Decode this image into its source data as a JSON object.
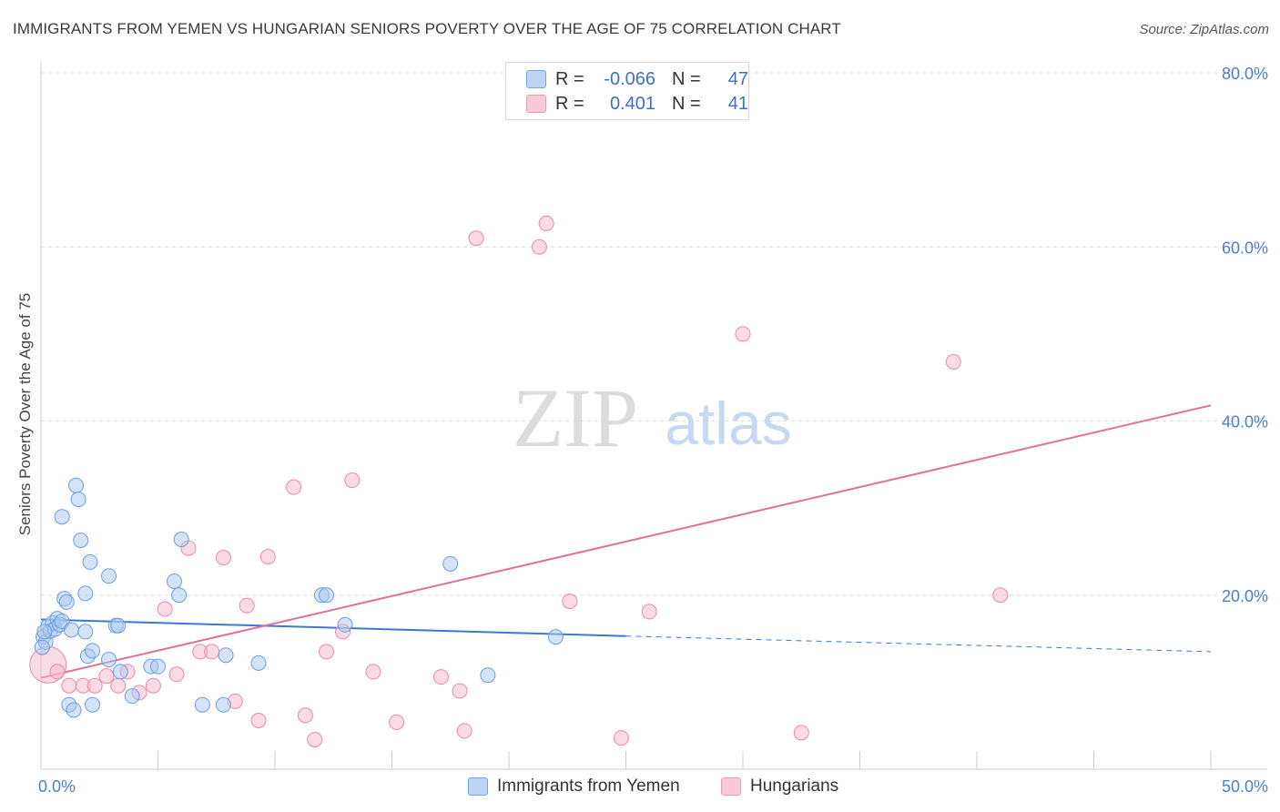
{
  "title": "IMMIGRANTS FROM YEMEN VS HUNGARIAN SENIORS POVERTY OVER THE AGE OF 75 CORRELATION CHART",
  "source": "Source: ZipAtlas.com",
  "watermark": {
    "zip": "ZIP",
    "atlas": "atlas"
  },
  "legend": {
    "r_label": "R =",
    "n_label": "N =",
    "rows": [
      {
        "r": "-0.066",
        "n": "47"
      },
      {
        "r": "0.401",
        "n": "41"
      }
    ]
  },
  "colors": {
    "blue_fill": "#a9c8f0",
    "blue_stroke": "#6a9fe0",
    "blue_line": "#3a78d4",
    "pink_fill": "#f5b8cb",
    "pink_stroke": "#e88aa8",
    "pink_line": "#e0709a",
    "tick_text": "#4a7fd0",
    "grid": "#dddddd"
  },
  "chart_data": {
    "type": "scatter",
    "title": "IMMIGRANTS FROM YEMEN VS HUNGARIAN SENIORS POVERTY OVER THE AGE OF 75 CORRELATION CHART",
    "xlabel": "",
    "ylabel": "Seniors Poverty Over the Age of 75",
    "xlim": [
      0,
      50
    ],
    "ylim": [
      0,
      80
    ],
    "x_tick_labels": [
      "0.0%",
      "50.0%"
    ],
    "y_tick_labels": [
      "20.0%",
      "40.0%",
      "60.0%",
      "80.0%"
    ],
    "y_ticks": [
      20,
      40,
      60,
      80
    ],
    "grid": true,
    "legend_position": "top-center",
    "series": [
      {
        "name": "Immigrants from Yemen",
        "r": -0.066,
        "n": 47,
        "points": [
          [
            0.1,
            15.2
          ],
          [
            0.2,
            14.6
          ],
          [
            0.3,
            16.4
          ],
          [
            0.4,
            15.9
          ],
          [
            0.5,
            16.8
          ],
          [
            0.6,
            16.1
          ],
          [
            0.7,
            17.3
          ],
          [
            0.8,
            16.6
          ],
          [
            0.9,
            17.0
          ],
          [
            1.0,
            19.6
          ],
          [
            1.1,
            19.2
          ],
          [
            1.2,
            7.4
          ],
          [
            1.3,
            16.0
          ],
          [
            1.4,
            6.8
          ],
          [
            1.5,
            32.6
          ],
          [
            1.6,
            31.0
          ],
          [
            1.7,
            26.3
          ],
          [
            1.9,
            15.8
          ],
          [
            1.9,
            20.2
          ],
          [
            0.9,
            29.0
          ],
          [
            2.0,
            13.0
          ],
          [
            2.1,
            23.8
          ],
          [
            2.2,
            13.6
          ],
          [
            2.2,
            7.4
          ],
          [
            2.9,
            22.2
          ],
          [
            2.9,
            12.6
          ],
          [
            3.2,
            16.5
          ],
          [
            3.3,
            16.5
          ],
          [
            3.4,
            11.2
          ],
          [
            3.9,
            8.4
          ],
          [
            4.7,
            11.8
          ],
          [
            5.0,
            11.8
          ],
          [
            5.7,
            21.6
          ],
          [
            5.9,
            20.0
          ],
          [
            6.0,
            26.4
          ],
          [
            6.9,
            7.4
          ],
          [
            7.8,
            7.4
          ],
          [
            7.9,
            13.1
          ],
          [
            9.3,
            12.2
          ],
          [
            12.0,
            20.0
          ],
          [
            12.2,
            20.0
          ],
          [
            13.0,
            16.6
          ],
          [
            17.5,
            23.6
          ],
          [
            19.1,
            10.8
          ],
          [
            22.0,
            15.2
          ],
          [
            0.05,
            14.0
          ],
          [
            0.15,
            15.8
          ]
        ],
        "trend": {
          "x0": 0,
          "y0": 17.2,
          "x1": 25,
          "y1": 15.3,
          "dashed_to_x": 50,
          "dashed_to_y": 13.5
        }
      },
      {
        "name": "Hungarians",
        "r": 0.401,
        "n": 41,
        "points": [
          [
            0.3,
            12.0
          ],
          [
            0.7,
            11.2
          ],
          [
            1.2,
            9.6
          ],
          [
            1.8,
            9.6
          ],
          [
            2.3,
            9.6
          ],
          [
            2.8,
            10.7
          ],
          [
            3.3,
            9.6
          ],
          [
            3.7,
            11.2
          ],
          [
            4.2,
            8.8
          ],
          [
            4.8,
            9.6
          ],
          [
            5.3,
            18.4
          ],
          [
            5.8,
            10.9
          ],
          [
            6.3,
            25.4
          ],
          [
            6.8,
            13.5
          ],
          [
            7.3,
            13.5
          ],
          [
            7.8,
            24.3
          ],
          [
            8.3,
            7.8
          ],
          [
            8.8,
            18.8
          ],
          [
            9.3,
            5.6
          ],
          [
            9.7,
            24.4
          ],
          [
            10.8,
            32.4
          ],
          [
            11.3,
            6.2
          ],
          [
            11.7,
            3.4
          ],
          [
            12.2,
            13.5
          ],
          [
            12.9,
            15.8
          ],
          [
            13.3,
            33.2
          ],
          [
            14.2,
            11.2
          ],
          [
            15.2,
            5.4
          ],
          [
            17.1,
            10.6
          ],
          [
            17.9,
            9.0
          ],
          [
            18.1,
            4.4
          ],
          [
            18.6,
            61.0
          ],
          [
            21.3,
            60.0
          ],
          [
            21.6,
            62.7
          ],
          [
            22.6,
            19.3
          ],
          [
            24.8,
            3.6
          ],
          [
            26.0,
            18.1
          ],
          [
            30.0,
            50.0
          ],
          [
            32.5,
            4.2
          ],
          [
            39.0,
            46.8
          ],
          [
            41.0,
            20.0
          ]
        ],
        "trend": {
          "x0": 0,
          "y0": 10.5,
          "x1": 50,
          "y1": 41.8
        }
      }
    ]
  },
  "bottom_legend": [
    "Immigrants from Yemen",
    "Hungarians"
  ]
}
